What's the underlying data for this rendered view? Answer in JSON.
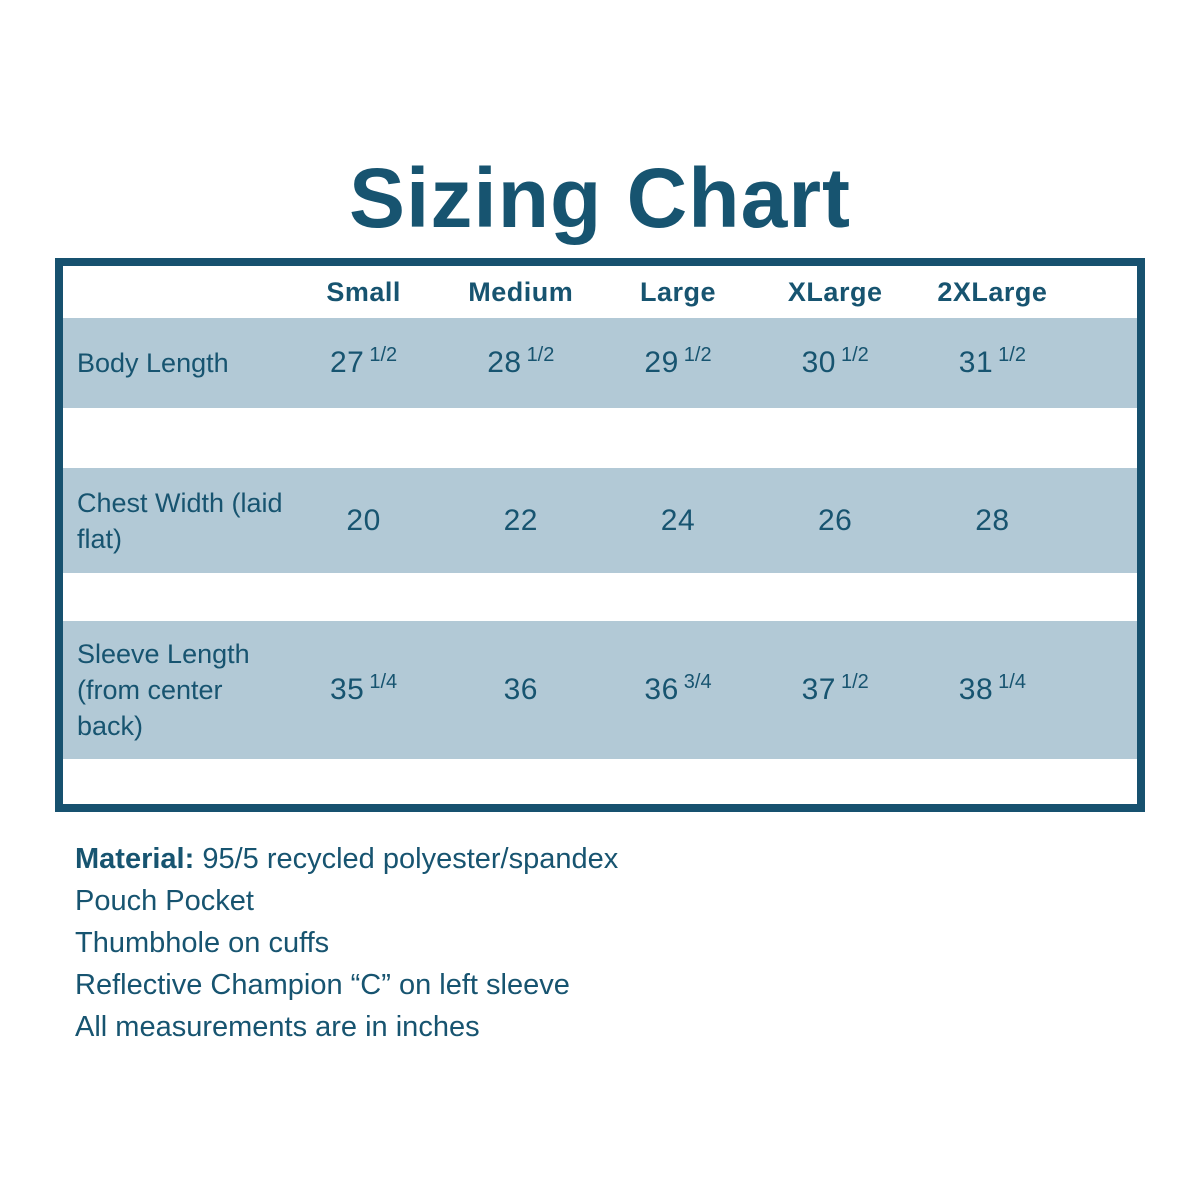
{
  "title": "Sizing Chart",
  "colors": {
    "text": "#175470",
    "band": "#b2c9d6",
    "border": "#17516f",
    "background": "#ffffff"
  },
  "table": {
    "columns": [
      "Small",
      "Medium",
      "Large",
      "XLarge",
      "2XLarge"
    ],
    "rows": [
      {
        "label": "Body Length",
        "values": [
          {
            "whole": "27",
            "frac": "1/2"
          },
          {
            "whole": "28",
            "frac": "1/2"
          },
          {
            "whole": "29",
            "frac": "1/2"
          },
          {
            "whole": "30",
            "frac": "1/2"
          },
          {
            "whole": "31",
            "frac": "1/2"
          }
        ]
      },
      {
        "label": "Chest Width (laid flat)",
        "values": [
          {
            "whole": "20",
            "frac": ""
          },
          {
            "whole": "22",
            "frac": ""
          },
          {
            "whole": "24",
            "frac": ""
          },
          {
            "whole": "26",
            "frac": ""
          },
          {
            "whole": "28",
            "frac": ""
          }
        ]
      },
      {
        "label": "Sleeve Length (from center back)",
        "values": [
          {
            "whole": "35",
            "frac": "1/4"
          },
          {
            "whole": "36",
            "frac": ""
          },
          {
            "whole": "36",
            "frac": "3/4"
          },
          {
            "whole": "37",
            "frac": "1/2"
          },
          {
            "whole": "38",
            "frac": "1/4"
          }
        ]
      }
    ]
  },
  "notes": {
    "material_label": "Material:",
    "material_rest": "95/5 recycled polyester/spandex",
    "features": [
      "Pouch Pocket",
      "Thumbhole on cuffs",
      "Reflective Champion “C” on left sleeve",
      "All measurements are in inches"
    ]
  },
  "chart_data": {
    "type": "table",
    "title": "Sizing Chart",
    "columns": [
      "Small",
      "Medium",
      "Large",
      "XLarge",
      "2XLarge"
    ],
    "rows": [
      {
        "label": "Body Length",
        "values": [
          27.5,
          28.5,
          29.5,
          30.5,
          31.5
        ]
      },
      {
        "label": "Chest Width (laid flat)",
        "values": [
          20,
          22,
          24,
          26,
          28
        ]
      },
      {
        "label": "Sleeve Length (from center back)",
        "values": [
          35.25,
          36,
          36.75,
          37.5,
          38.25
        ]
      }
    ],
    "units": "inches",
    "notes": [
      "Material: 95/5 recycled polyester/spandex",
      "Pouch Pocket",
      "Thumbhole on cuffs",
      "Reflective Champion “C” on left sleeve",
      "All measurements are in inches"
    ]
  }
}
